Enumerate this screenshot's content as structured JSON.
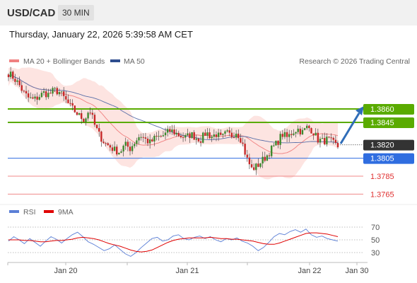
{
  "header": {
    "symbol": "USD/CAD",
    "timeframe": "30 MIN",
    "timestamp": "Thursday, January 22, 2026 5:39:58 AM CET"
  },
  "legend": {
    "bollinger_label": "MA 20 + Bollinger Bands",
    "ma50_label": "MA 50",
    "credit": "Research © 2026 Trading Central",
    "bollinger_color": "#f08080",
    "ma50_color": "#2e4d8f"
  },
  "rsi_legend": {
    "rsi_label": "RSI",
    "ma9_label": "9MA",
    "rsi_color": "#5b7fd6",
    "ma9_color": "#e00000"
  },
  "chart_data": {
    "type": "candlestick",
    "x_labels": [
      "Jan 20",
      "Jan 21",
      "Jan 22",
      "Jan 30"
    ],
    "current_price": "1.3820",
    "levels": [
      {
        "label": "1.3860",
        "value": 1.386,
        "kind": "resistance",
        "color": "#5aab00"
      },
      {
        "label": "1.3845",
        "value": 1.3845,
        "kind": "resistance",
        "color": "#5aab00"
      },
      {
        "label": "1.3820",
        "value": 1.382,
        "kind": "current",
        "color": "#222222"
      },
      {
        "label": "1.3805",
        "value": 1.3805,
        "kind": "pivot",
        "color": "#2f6de0"
      },
      {
        "label": "1.3785",
        "value": 1.3785,
        "kind": "support",
        "color": "#e03030"
      },
      {
        "label": "1.3765",
        "value": 1.3765,
        "kind": "support",
        "color": "#e03030"
      }
    ],
    "price_path": [
      1.39,
      1.3895,
      1.3888,
      1.3878,
      1.3872,
      1.387,
      1.3874,
      1.3878,
      1.3876,
      1.3881,
      1.3879,
      1.3872,
      1.3864,
      1.3858,
      1.3852,
      1.3848,
      1.386,
      1.3842,
      1.383,
      1.3822,
      1.3818,
      1.3814,
      1.3812,
      1.382,
      1.3816,
      1.3824,
      1.3831,
      1.3826,
      1.3822,
      1.3828,
      1.3829,
      1.3832,
      1.3836,
      1.3833,
      1.383,
      1.3828,
      1.3832,
      1.3828,
      1.3826,
      1.3834,
      1.3829,
      1.3832,
      1.3827,
      1.3833,
      1.383,
      1.3835,
      1.3825,
      1.3805,
      1.3793,
      1.3796,
      1.3802,
      1.3808,
      1.3816,
      1.3822,
      1.3832,
      1.3828,
      1.3834,
      1.3838,
      1.3834,
      1.384,
      1.3836,
      1.3826,
      1.3824,
      1.3826,
      1.3822,
      1.3818
    ],
    "rsi": {
      "levels": [
        70,
        50,
        30
      ],
      "rsi_values": [
        48,
        55,
        50,
        44,
        52,
        46,
        40,
        48,
        55,
        51,
        45,
        52,
        58,
        62,
        55,
        47,
        43,
        38,
        33,
        36,
        42,
        35,
        28,
        24,
        30,
        38,
        45,
        52,
        54,
        48,
        50,
        56,
        58,
        52,
        50,
        54,
        56,
        52,
        55,
        50,
        47,
        52,
        50,
        53,
        48,
        45,
        40,
        33,
        38,
        46,
        55,
        60,
        58,
        63,
        66,
        62,
        67,
        58,
        54,
        56,
        52,
        50,
        48
      ],
      "ma9_values": [
        50,
        50,
        50,
        49,
        49,
        48,
        47,
        47,
        48,
        49,
        49,
        50,
        51,
        53,
        54,
        53,
        52,
        50,
        47,
        44,
        42,
        40,
        37,
        34,
        32,
        31,
        32,
        34,
        38,
        42,
        46,
        49,
        51,
        52,
        53,
        53,
        53,
        53,
        54,
        53,
        52,
        52,
        51,
        51,
        50,
        49,
        48,
        46,
        44,
        43,
        43,
        45,
        48,
        51,
        54,
        57,
        60,
        61,
        61,
        60,
        59,
        57,
        55
      ]
    }
  }
}
